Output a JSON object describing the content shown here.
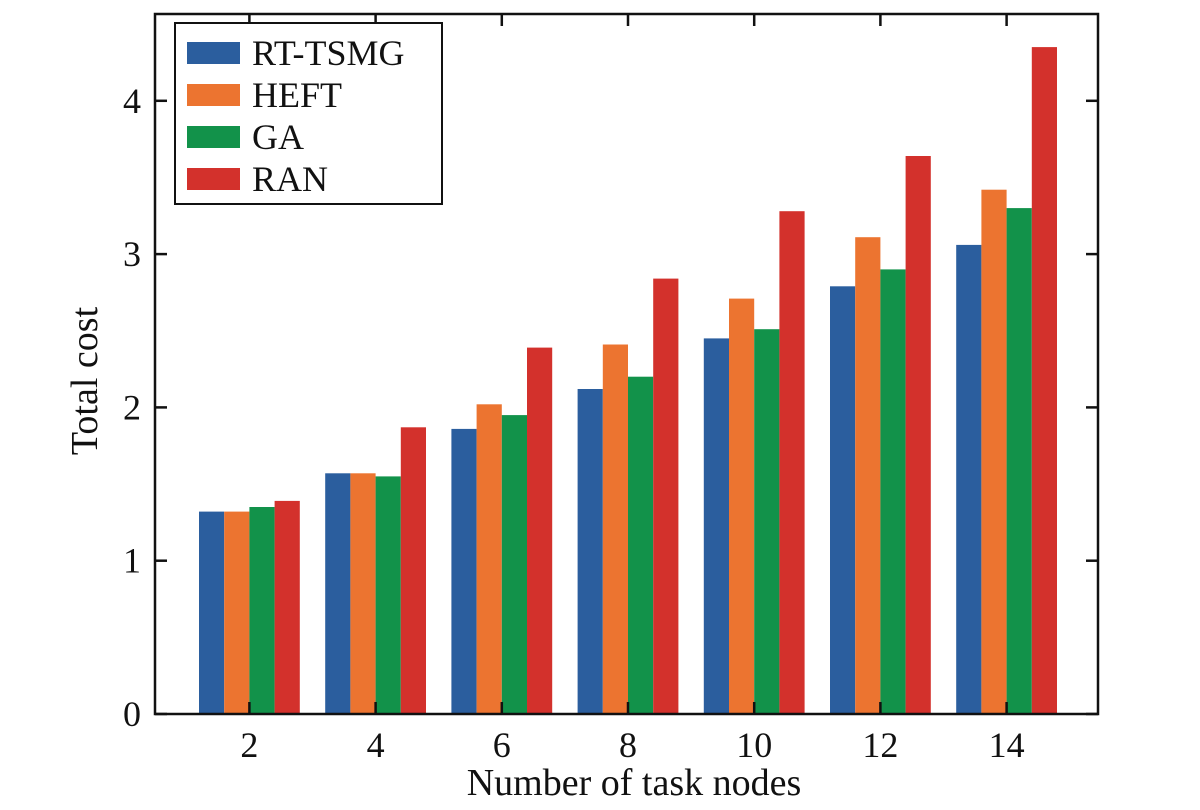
{
  "chart_data": {
    "type": "bar",
    "title": "",
    "xlabel": "Number of task nodes",
    "ylabel": "Total cost",
    "categories": [
      "2",
      "4",
      "6",
      "8",
      "10",
      "12",
      "14"
    ],
    "ylim": [
      0,
      4.5
    ],
    "yticks": [
      "0",
      "1",
      "2",
      "3",
      "4"
    ],
    "grid": false,
    "legend_position": "top-left",
    "series": [
      {
        "name": "RT-TSMG",
        "color": "#2b5e9e",
        "values": [
          1.32,
          1.57,
          1.86,
          2.12,
          2.45,
          2.79,
          3.06
        ]
      },
      {
        "name": "HEFT",
        "color": "#ec7430",
        "values": [
          1.32,
          1.57,
          2.02,
          2.41,
          2.71,
          3.11,
          3.42
        ]
      },
      {
        "name": "GA",
        "color": "#12924a",
        "values": [
          1.35,
          1.55,
          1.95,
          2.2,
          2.51,
          2.9,
          3.3
        ]
      },
      {
        "name": "RAN",
        "color": "#d3312c",
        "values": [
          1.39,
          1.87,
          2.39,
          2.84,
          3.28,
          3.64,
          4.35
        ]
      }
    ]
  }
}
